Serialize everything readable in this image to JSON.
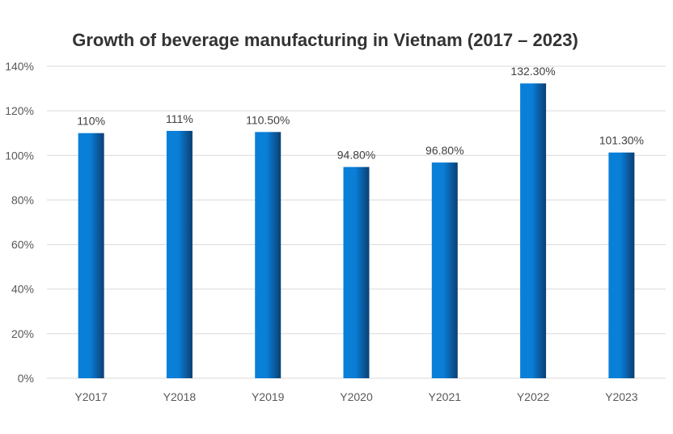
{
  "chart_data": {
    "type": "bar",
    "title": "Growth of beverage manufacturing in Vietnam (2017 – 2023)",
    "xlabel": "",
    "ylabel": "",
    "categories": [
      "Y2017",
      "Y2018",
      "Y2019",
      "Y2020",
      "Y2021",
      "Y2022",
      "Y2023"
    ],
    "values": [
      110,
      111,
      110.5,
      94.8,
      96.8,
      132.3,
      101.3
    ],
    "data_labels": [
      "110%",
      "111%",
      "110.50%",
      "94.80%",
      "96.80%",
      "132.30%",
      "101.30%"
    ],
    "ylim": [
      0,
      140
    ],
    "yticks": [
      0,
      20,
      40,
      60,
      80,
      100,
      120,
      140
    ],
    "ytick_labels": [
      "0%",
      "20%",
      "40%",
      "60%",
      "80%",
      "100%",
      "120%",
      "140%"
    ],
    "grid": true,
    "legend": "none",
    "colors": {
      "bar_light": "#0a7fd8",
      "bar_dark": "#0b3f73"
    }
  }
}
